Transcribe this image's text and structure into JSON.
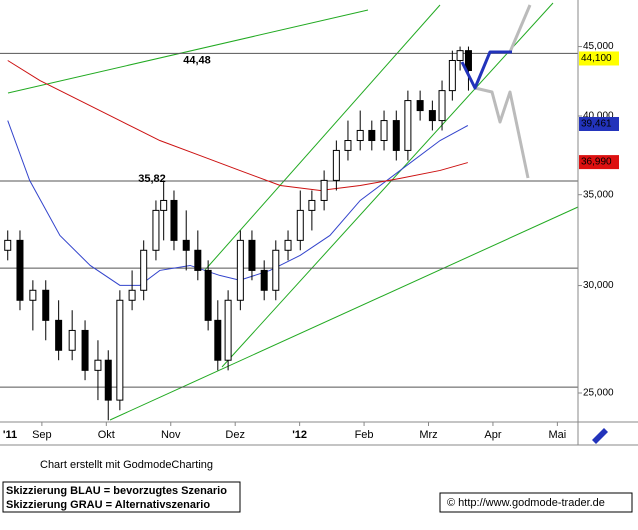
{
  "chart_data": {
    "type": "candlestick",
    "log_scale": true,
    "xlim": [
      0.35,
      9.32
    ],
    "ylim": [
      23800,
      48700
    ],
    "xticks": [
      {
        "value": 0,
        "label": "'11"
      },
      {
        "value": 1,
        "label": "Sep"
      },
      {
        "value": 2,
        "label": "Okt"
      },
      {
        "value": 3,
        "label": "Nov"
      },
      {
        "value": 4,
        "label": "Dez"
      },
      {
        "value": 5,
        "label": "'12"
      },
      {
        "value": 6,
        "label": "Feb"
      },
      {
        "value": 7,
        "label": "Mrz"
      },
      {
        "value": 8,
        "label": "Apr"
      },
      {
        "value": 9,
        "label": "Mai"
      }
    ],
    "yticks": [
      {
        "value": 25000,
        "label": "25,000"
      },
      {
        "value": 30000,
        "label": "30,000"
      },
      {
        "value": 35000,
        "label": "35,000"
      },
      {
        "value": 40000,
        "label": "40,000"
      },
      {
        "value": 45000,
        "label": "45,000"
      }
    ],
    "x": [
      0.47,
      0.66,
      0.86,
      1.06,
      1.26,
      1.47,
      1.67,
      1.87,
      2.03,
      2.21,
      2.4,
      2.58,
      2.77,
      2.89,
      3.05,
      3.24,
      3.42,
      3.58,
      3.73,
      3.89,
      4.08,
      4.26,
      4.45,
      4.63,
      4.82,
      5.01,
      5.19,
      5.38,
      5.57,
      5.75,
      5.94,
      6.12,
      6.31,
      6.5,
      6.68,
      6.87,
      7.06,
      7.21,
      7.37,
      7.49,
      7.62
    ],
    "open": [
      31850,
      32390,
      29260,
      29760,
      28280,
      26880,
      27800,
      25980,
      26430,
      24700,
      29260,
      29760,
      31850,
      34080,
      34660,
      32390,
      31850,
      30780,
      28280,
      26430,
      29260,
      32390,
      30780,
      29760,
      31850,
      32390,
      34080,
      34660,
      35860,
      37730,
      38370,
      39030,
      38370,
      39690,
      37730,
      41060,
      40370,
      39690,
      41760,
      43950,
      44690
    ],
    "high": [
      32940,
      32940,
      30270,
      30270,
      29260,
      28770,
      28280,
      27340,
      26880,
      29760,
      30780,
      32390,
      34660,
      35860,
      35250,
      34080,
      32940,
      31310,
      29260,
      29760,
      32940,
      32940,
      31310,
      32390,
      32940,
      35250,
      35250,
      36470,
      38370,
      39690,
      40370,
      39690,
      40370,
      40370,
      41760,
      41760,
      41060,
      42480,
      44690,
      45000,
      45000
    ],
    "low": [
      31310,
      28770,
      27800,
      27340,
      26430,
      26430,
      25550,
      24700,
      23870,
      24280,
      28770,
      29260,
      31310,
      32390,
      31850,
      30780,
      30270,
      27800,
      25980,
      25980,
      28770,
      30270,
      29260,
      29260,
      31310,
      31850,
      32940,
      34080,
      35250,
      37090,
      37730,
      37730,
      37730,
      37090,
      37090,
      39690,
      39030,
      39030,
      41060,
      43210,
      41760
    ],
    "close": [
      32390,
      29260,
      29760,
      28280,
      26880,
      27800,
      25980,
      26430,
      24700,
      29260,
      29760,
      31850,
      34080,
      34660,
      32390,
      31850,
      30780,
      28280,
      26430,
      29260,
      32390,
      30780,
      29760,
      31850,
      32390,
      34080,
      34660,
      35860,
      37730,
      38370,
      39030,
      38370,
      39690,
      37730,
      41060,
      40370,
      39690,
      41760,
      43950,
      44690,
      43210
    ],
    "moving_averages": [
      {
        "color": "#3344cc",
        "x": [
          0.47,
          0.81,
          1.28,
          1.75,
          2.21,
          2.52,
          2.83,
          3.3,
          3.76,
          4.07,
          4.54,
          5.01,
          5.47,
          5.94,
          6.56,
          7.18,
          7.61
        ],
        "values": [
          39690,
          35860,
          32660,
          31040,
          30010,
          30010,
          30780,
          31040,
          30520,
          30270,
          30780,
          31580,
          32660,
          34660,
          36470,
          38370,
          39360
        ]
      },
      {
        "color": "#cc1111",
        "x": [
          0.47,
          0.97,
          1.59,
          2.21,
          2.83,
          3.45,
          4.07,
          4.7,
          5.32,
          5.94,
          6.56,
          7.18,
          7.61
        ],
        "values": [
          43950,
          42480,
          41060,
          39690,
          38370,
          37410,
          36470,
          35550,
          35250,
          35550,
          35980,
          36470,
          36960
        ]
      }
    ],
    "levels": [
      {
        "value": 44480,
        "label": "44,48"
      },
      {
        "value": 35820,
        "label": "35,82"
      },
      {
        "value": 30900
      },
      {
        "value": 25250
      }
    ],
    "price_tags": [
      {
        "value": 44100,
        "label": "44,100",
        "color": "#ffff00"
      },
      {
        "value": 39461,
        "label": "39,461",
        "color": "#2233bb"
      },
      {
        "value": 36990,
        "label": "36,990",
        "color": "#dd1111"
      }
    ],
    "credit": "Chart erstellt mit GodmodeCharting",
    "legend_lines": [
      "Skizzierung BLAU = bevorzugtes Szenario",
      "Skizzierung GRAU = Alternativszenario"
    ],
    "source": "© http://www.godmode-trader.de"
  }
}
